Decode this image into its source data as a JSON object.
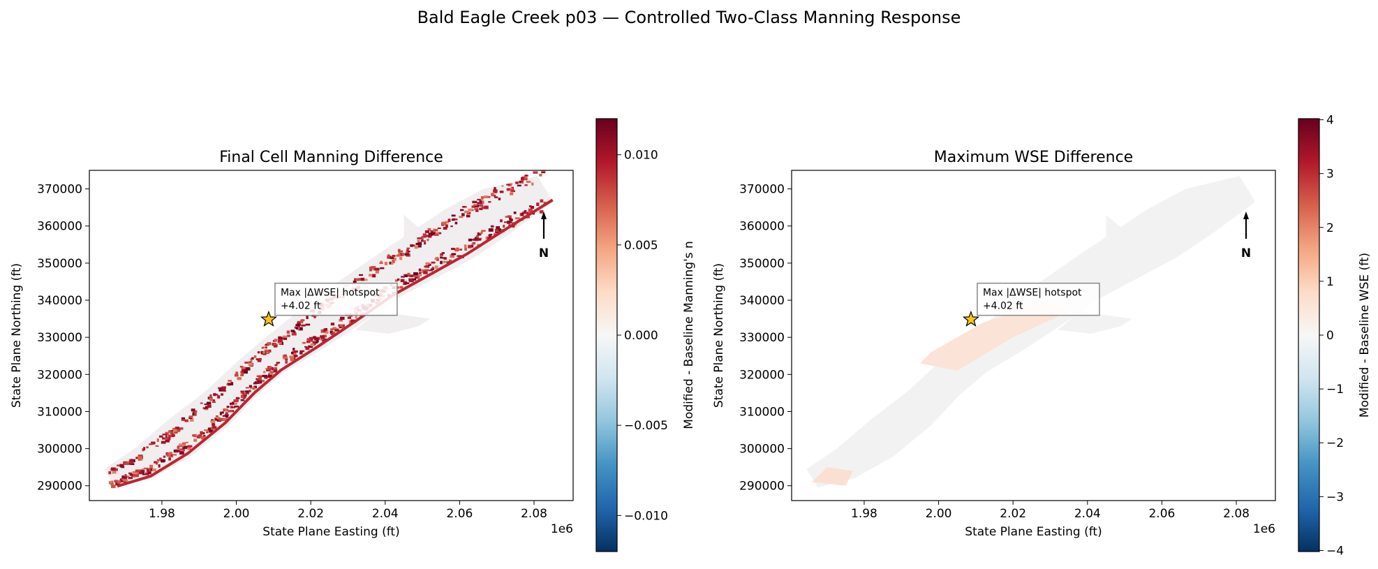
{
  "suptitle": "Bald Eagle Creek p03 — Controlled Two-Class Manning Response",
  "colors": {
    "cmap": [
      "#053061",
      "#2166ac",
      "#4393c3",
      "#92c5de",
      "#d1e5f0",
      "#f7f7f7",
      "#fddbc7",
      "#f4a582",
      "#d6604d",
      "#b2182b",
      "#67001f"
    ],
    "star_fill": "#f5c518",
    "star_stroke": "#000000",
    "axis": "#000000"
  },
  "chart_data": [
    {
      "type": "heatmap",
      "title": "Final Cell Manning Difference",
      "xlabel": "State Plane Easting (ft)",
      "ylabel": "State Plane Northing (ft)",
      "x_offset_label": "1e6",
      "xlim": [
        1.9605,
        2.0905
      ],
      "ylim": [
        286000,
        375000
      ],
      "xticks": [
        1.98,
        2.0,
        2.02,
        2.04,
        2.06,
        2.08
      ],
      "xtick_labels": [
        "1.98",
        "2.00",
        "2.02",
        "2.04",
        "2.06",
        "2.08"
      ],
      "yticks": [
        290000,
        300000,
        310000,
        320000,
        330000,
        340000,
        350000,
        360000,
        370000
      ],
      "ytick_labels": [
        "290000",
        "300000",
        "310000",
        "320000",
        "330000",
        "340000",
        "350000",
        "360000",
        "370000"
      ],
      "colorbar": {
        "label": "Modified - Baseline Manning's n",
        "range": [
          -0.012,
          0.012
        ],
        "ticks": [
          -0.01,
          -0.005,
          0.0,
          0.005,
          0.01
        ],
        "tick_labels": [
          "−0.010",
          "−0.005",
          "0.000",
          "0.005",
          "0.010"
        ]
      },
      "annotation": {
        "line1": "Max |ΔWSE| hotspot",
        "line2": "+4.02 ft",
        "x": 2.0087,
        "y": 334800
      },
      "north_arrow": {
        "label": "N",
        "placement": "top-right"
      },
      "grid": false
    },
    {
      "type": "heatmap",
      "title": "Maximum WSE Difference",
      "xlabel": "State Plane Easting (ft)",
      "ylabel": "State Plane Northing (ft)",
      "x_offset_label": "1e6",
      "xlim": [
        1.9605,
        2.0905
      ],
      "ylim": [
        286000,
        375000
      ],
      "xticks": [
        1.98,
        2.0,
        2.02,
        2.04,
        2.06,
        2.08
      ],
      "xtick_labels": [
        "1.98",
        "2.00",
        "2.02",
        "2.04",
        "2.06",
        "2.08"
      ],
      "yticks": [
        290000,
        300000,
        310000,
        320000,
        330000,
        340000,
        350000,
        360000,
        370000
      ],
      "ytick_labels": [
        "290000",
        "300000",
        "310000",
        "320000",
        "330000",
        "340000",
        "350000",
        "360000",
        "370000"
      ],
      "colorbar": {
        "label": "Modified - Baseline WSE (ft)",
        "range": [
          -4.02,
          4.02
        ],
        "ticks": [
          -4,
          -3,
          -2,
          -1,
          0,
          1,
          2,
          3,
          4
        ],
        "tick_labels": [
          "−4",
          "−3",
          "−2",
          "−1",
          "0",
          "1",
          "2",
          "3",
          "4"
        ]
      },
      "annotation": {
        "line1": "Max |ΔWSE| hotspot",
        "line2": "+4.02 ft",
        "x": 2.0087,
        "y": 334800
      },
      "north_arrow": {
        "label": "N",
        "placement": "top-right"
      },
      "grid": false
    }
  ]
}
